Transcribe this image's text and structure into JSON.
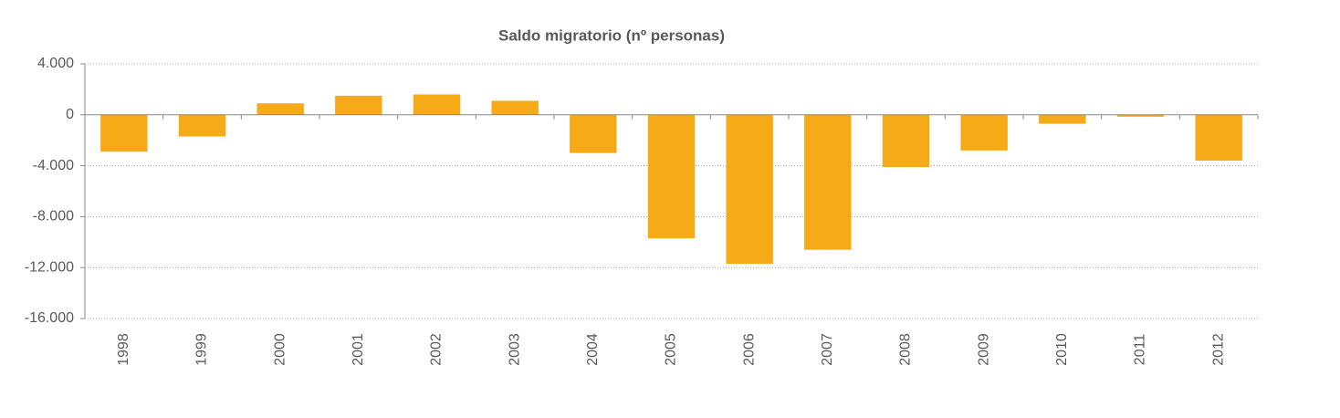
{
  "chart_data": {
    "type": "bar",
    "title": "Saldo migratorio (nº personas)",
    "categories": [
      "1998",
      "1999",
      "2000",
      "2001",
      "2002",
      "2003",
      "2004",
      "2005",
      "2006",
      "2007",
      "2008",
      "2009",
      "2010",
      "2011",
      "2012"
    ],
    "values": [
      -2900,
      -1700,
      900,
      1500,
      1600,
      1100,
      -3000,
      -9700,
      -11700,
      -10600,
      -4100,
      -2800,
      -700,
      -150,
      -3600
    ],
    "color": "#f7aa17",
    "ylim": [
      -16000,
      4000
    ],
    "yticks": [
      {
        "value": -16000,
        "label": "-16.000"
      },
      {
        "value": -12000,
        "label": "-12.000"
      },
      {
        "value": -8000,
        "label": "-8.000"
      },
      {
        "value": -4000,
        "label": "-4.000"
      },
      0,
      {
        "value": 4000,
        "label": "4.000"
      }
    ],
    "grid": true
  }
}
